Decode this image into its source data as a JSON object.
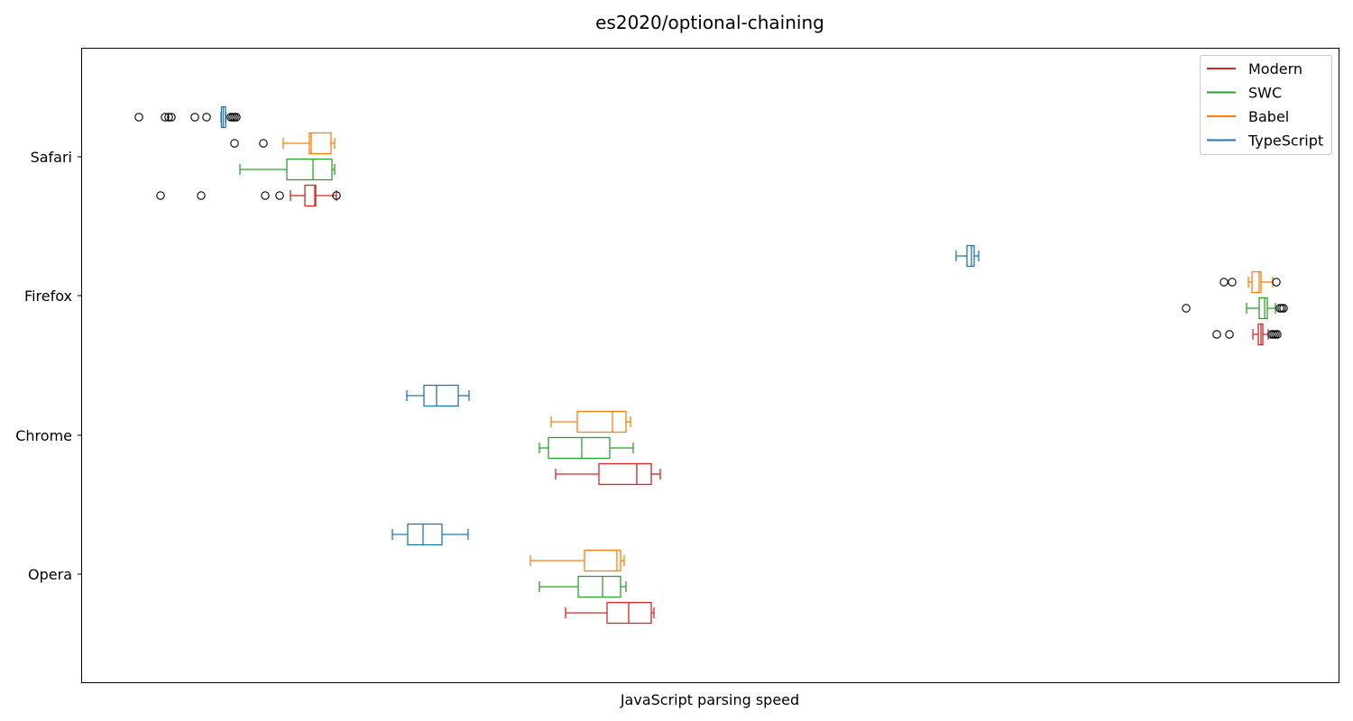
{
  "chart_data": {
    "type": "box",
    "orientation": "horizontal",
    "title": "es2020/optional-chaining",
    "xlabel": "JavaScript parsing speed",
    "ylabel": "",
    "x_ticks_shown": false,
    "grid": false,
    "legend_position": "top-right",
    "categories": [
      "Safari",
      "Firefox",
      "Chrome",
      "Opera"
    ],
    "series": [
      {
        "name": "Modern",
        "color": "#d62728"
      },
      {
        "name": "SWC",
        "color": "#2ca02c"
      },
      {
        "name": "Babel",
        "color": "#ff7f0e"
      },
      {
        "name": "TypeScript",
        "color": "#1f77b4"
      }
    ],
    "boxes": {
      "Safari": {
        "TypeScript": {
          "whisker_low": 245,
          "q1": 245.5,
          "median": 247.5,
          "q3": 250,
          "whisker_high": 250.5,
          "outliers": [
            154,
            183,
            187,
            190,
            216,
            229,
            256,
            258,
            260,
            262
          ]
        },
        "Babel": {
          "whisker_low": 314,
          "q1": 343,
          "median": 345,
          "q3": 367,
          "whisker_high": 371,
          "outliers": [
            260,
            292
          ]
        },
        "SWC": {
          "whisker_low": 266,
          "q1": 318,
          "median": 347,
          "q3": 368,
          "whisker_high": 371,
          "outliers": []
        },
        "Modern": {
          "whisker_low": 322,
          "q1": 338,
          "median": 349,
          "q3": 350,
          "whisker_high": 373,
          "outliers": [
            178,
            223,
            294,
            310,
            373
          ]
        }
      },
      "Firefox": {
        "TypeScript": {
          "whisker_low": 1060,
          "q1": 1072,
          "median": 1077,
          "q3": 1080,
          "whisker_high": 1085,
          "outliers": []
        },
        "Babel": {
          "whisker_low": 1384,
          "q1": 1388,
          "median": 1396,
          "q3": 1398,
          "whisker_high": 1411,
          "outliers": [
            1357,
            1366,
            1415
          ]
        },
        "SWC": {
          "whisker_low": 1382,
          "q1": 1396,
          "median": 1402,
          "q3": 1405,
          "whisker_high": 1414,
          "outliers": [
            1315,
            1419,
            1421,
            1423
          ]
        },
        "Modern": {
          "whisker_low": 1389,
          "q1": 1395,
          "median": 1398,
          "q3": 1400,
          "whisker_high": 1406,
          "outliers": [
            1349,
            1363,
            1410,
            1412,
            1414,
            1416
          ]
        }
      },
      "Chrome": {
        "TypeScript": {
          "whisker_low": 451,
          "q1": 470,
          "median": 484,
          "q3": 508,
          "whisker_high": 520,
          "outliers": []
        },
        "Babel": {
          "whisker_low": 611,
          "q1": 640,
          "median": 679,
          "q3": 694,
          "whisker_high": 699,
          "outliers": []
        },
        "SWC": {
          "whisker_low": 598,
          "q1": 608,
          "median": 645,
          "q3": 676,
          "whisker_high": 702,
          "outliers": []
        },
        "Modern": {
          "whisker_low": 616,
          "q1": 664,
          "median": 706,
          "q3": 722,
          "whisker_high": 732,
          "outliers": []
        }
      },
      "Opera": {
        "TypeScript": {
          "whisker_low": 435,
          "q1": 452,
          "median": 469,
          "q3": 490,
          "whisker_high": 519,
          "outliers": []
        },
        "Babel": {
          "whisker_low": 588,
          "q1": 648,
          "median": 684,
          "q3": 688,
          "whisker_high": 692,
          "outliers": []
        },
        "SWC": {
          "whisker_low": 598,
          "q1": 641,
          "median": 668,
          "q3": 688,
          "whisker_high": 694,
          "outliers": []
        },
        "Modern": {
          "whisker_low": 627,
          "q1": 673,
          "median": 697,
          "q3": 722,
          "whisker_high": 725,
          "outliers": []
        }
      }
    }
  }
}
